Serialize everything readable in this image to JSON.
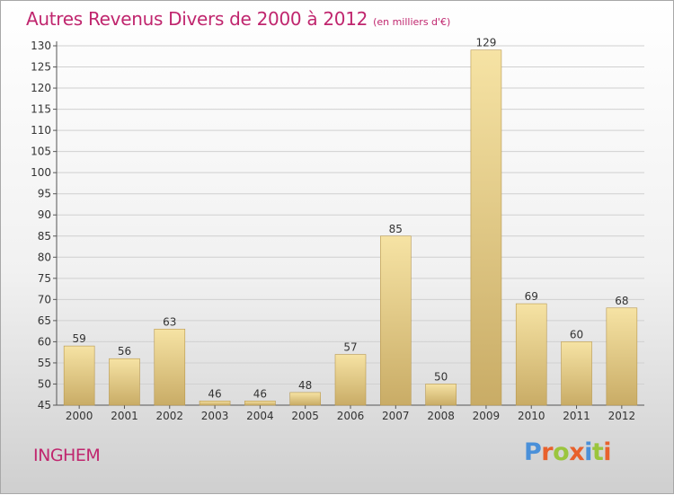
{
  "title": "Autres Revenus Divers de 2000 à 2012",
  "subtitle": "(en milliers d'€)",
  "location": "INGHEM",
  "brand": {
    "letters": [
      "P",
      "r",
      "o",
      "x",
      "i",
      "t",
      "i"
    ],
    "colors": [
      "#4a90d9",
      "#e8612c",
      "#9bc53d",
      "#e8612c",
      "#4a90d9",
      "#9bc53d",
      "#e8612c"
    ]
  },
  "colors": {
    "title": "#c0266e",
    "bar_light": "#f6e3a4",
    "bar_dark": "#c9ac66",
    "bar_edge": "#b8984f",
    "grid": "#d0d0d0",
    "axis": "#555555",
    "text": "#333333"
  },
  "chart_data": {
    "type": "bar",
    "categories": [
      "2000",
      "2001",
      "2002",
      "2003",
      "2004",
      "2005",
      "2006",
      "2007",
      "2008",
      "2009",
      "2010",
      "2011",
      "2012"
    ],
    "values": [
      59,
      56,
      63,
      46,
      46,
      48,
      57,
      85,
      50,
      129,
      69,
      60,
      68
    ],
    "ylim": [
      45,
      130
    ],
    "yticks": [
      45,
      50,
      55,
      60,
      65,
      70,
      75,
      80,
      85,
      90,
      95,
      100,
      105,
      110,
      115,
      120,
      125,
      130
    ],
    "grid": "horizontal",
    "data_labels": true,
    "title": "Autres Revenus Divers de 2000 à 2012",
    "xlabel": "",
    "ylabel": ""
  }
}
